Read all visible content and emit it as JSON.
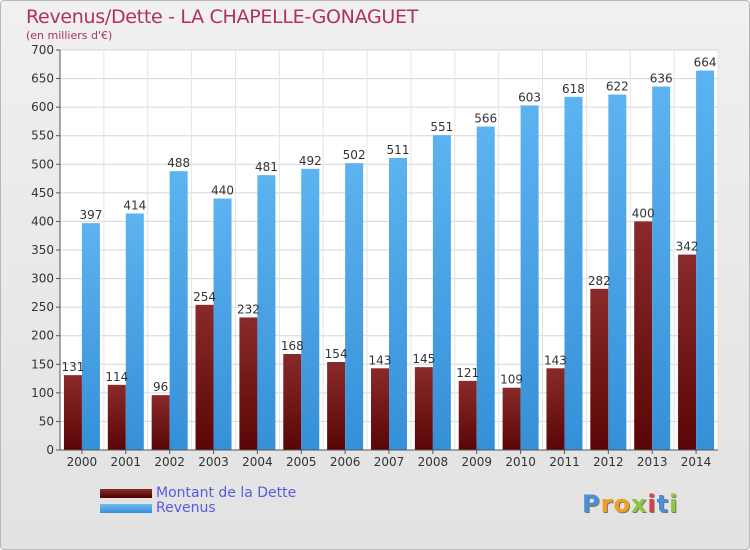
{
  "title": "Revenus/Dette - LA CHAPELLE-GONAGUET",
  "subtitle": "(en milliers d'€)",
  "legend": {
    "items": [
      {
        "label": "Montant de la Dette",
        "color": "#6b1414"
      },
      {
        "label": "Revenus",
        "color": "#4aa3e6"
      }
    ]
  },
  "logo": {
    "letters": [
      {
        "ch": "P",
        "color": "#4a8fd8"
      },
      {
        "ch": "r",
        "color": "#f0a020"
      },
      {
        "ch": "o",
        "color": "#f0a020"
      },
      {
        "ch": "x",
        "color": "#8ec63f"
      },
      {
        "ch": "i",
        "color": "#e23b3b"
      },
      {
        "ch": "t",
        "color": "#4a8fd8"
      },
      {
        "ch": "i",
        "color": "#8ec63f"
      }
    ]
  },
  "chart_data": {
    "type": "bar",
    "title": "Revenus/Dette - LA CHAPELLE-GONAGUET",
    "subtitle": "(en milliers d'€)",
    "categories": [
      "2000",
      "2001",
      "2002",
      "2003",
      "2004",
      "2005",
      "2006",
      "2007",
      "2008",
      "2009",
      "2010",
      "2011",
      "2012",
      "2013",
      "2014"
    ],
    "series": [
      {
        "name": "Montant de la Dette",
        "color": "#6b1414",
        "values": [
          131,
          114,
          96,
          254,
          232,
          168,
          154,
          143,
          145,
          121,
          109,
          143,
          282,
          400,
          342
        ]
      },
      {
        "name": "Revenus",
        "color": "#4aa3e6",
        "values": [
          397,
          414,
          488,
          440,
          481,
          492,
          502,
          511,
          551,
          566,
          603,
          618,
          622,
          636,
          664
        ]
      }
    ],
    "ylim": [
      0,
      700
    ],
    "yticks": [
      0,
      50,
      100,
      150,
      200,
      250,
      300,
      350,
      400,
      450,
      500,
      550,
      600,
      650,
      700
    ],
    "grid": true,
    "legend_position": "bottom-left"
  }
}
